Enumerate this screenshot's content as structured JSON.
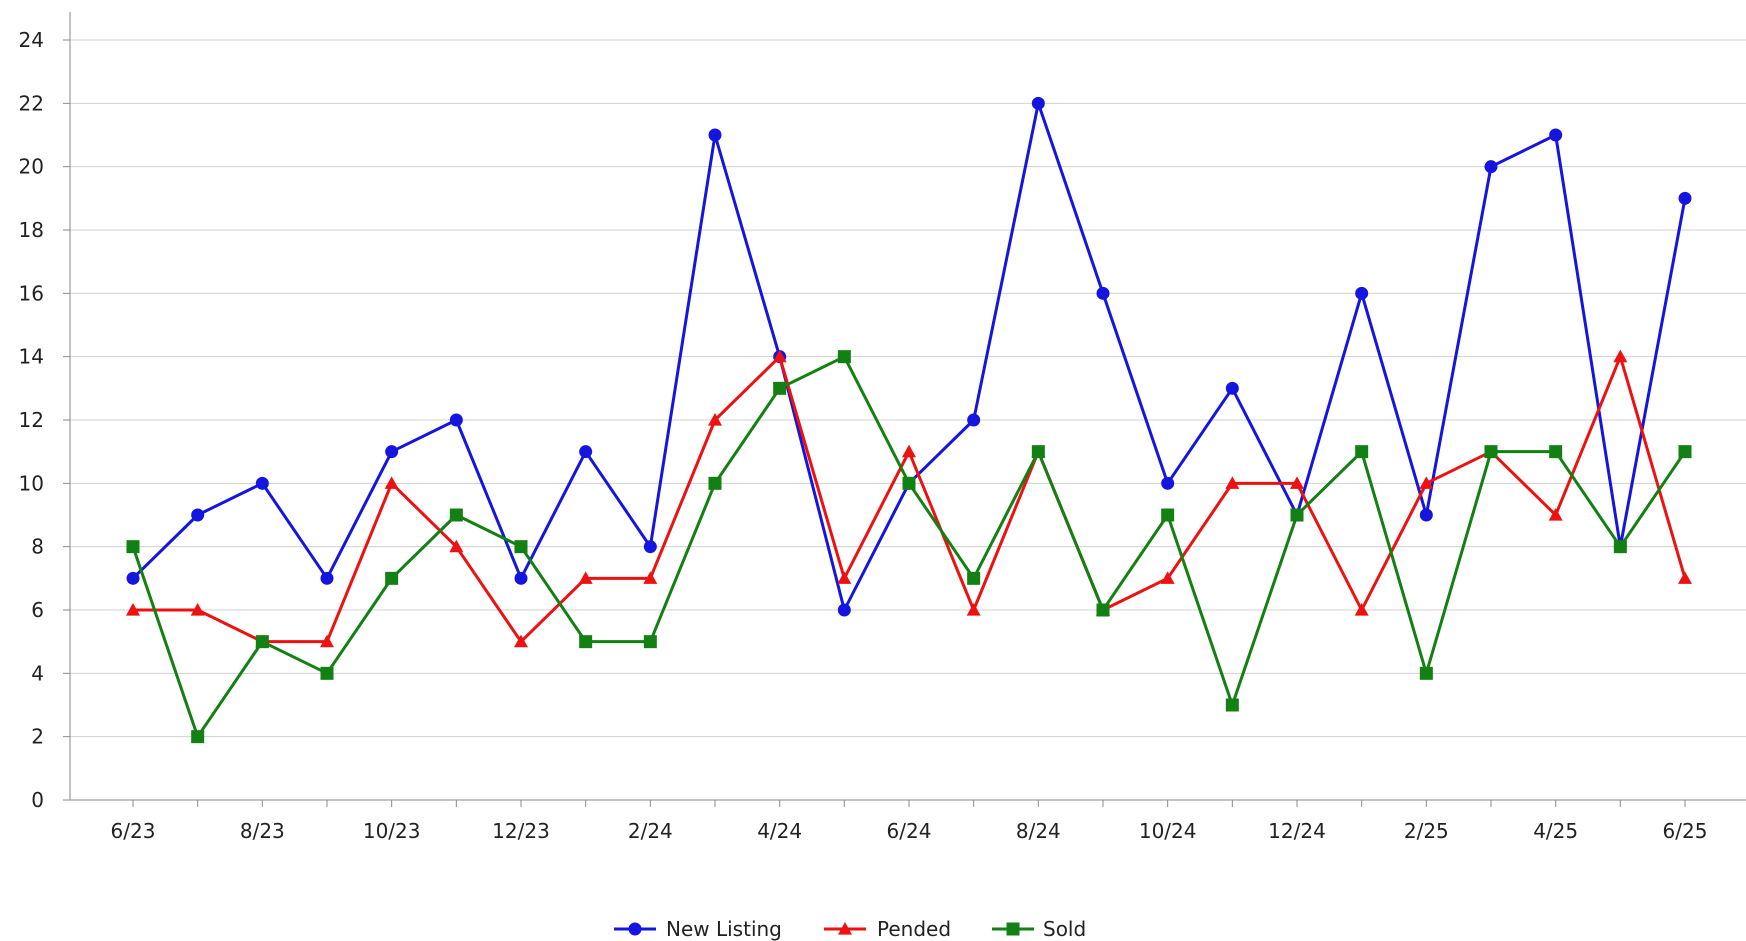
{
  "chart_data": {
    "type": "line",
    "title": "",
    "xlabel": "",
    "ylabel": "",
    "x": [
      "6/23",
      "7/23",
      "8/23",
      "9/23",
      "10/23",
      "11/23",
      "12/23",
      "1/24",
      "2/24",
      "3/24",
      "4/24",
      "5/24",
      "6/24",
      "7/24",
      "8/24",
      "9/24",
      "10/24",
      "11/24",
      "12/24",
      "1/25",
      "2/25",
      "3/25",
      "4/25",
      "5/25",
      "6/25"
    ],
    "x_tick_labels": [
      "6/23",
      "8/23",
      "10/23",
      "12/23",
      "2/24",
      "4/24",
      "6/24",
      "8/24",
      "10/24",
      "12/24",
      "2/25",
      "4/25",
      "6/25"
    ],
    "ylim": [
      0,
      24
    ],
    "y_ticks": [
      0,
      2,
      4,
      6,
      8,
      10,
      12,
      14,
      16,
      18,
      20,
      22,
      24
    ],
    "grid": true,
    "legend_position": "bottom-center",
    "series": [
      {
        "name": "New Listing",
        "color": "#1515e0",
        "marker": "circle",
        "values": [
          7,
          9,
          10,
          7,
          11,
          12,
          7,
          11,
          8,
          21,
          14,
          6,
          10,
          12,
          22,
          16,
          10,
          13,
          9,
          16,
          9,
          20,
          21,
          8,
          19
        ]
      },
      {
        "name": "Pended",
        "color": "#ee1111",
        "marker": "triangle",
        "values": [
          6,
          6,
          5,
          5,
          10,
          8,
          5,
          7,
          7,
          12,
          14,
          7,
          11,
          6,
          11,
          6,
          7,
          10,
          10,
          6,
          10,
          11,
          9,
          14,
          7
        ]
      },
      {
        "name": "Sold",
        "color": "#128012",
        "marker": "square",
        "values": [
          8,
          2,
          5,
          4,
          7,
          9,
          8,
          5,
          5,
          10,
          13,
          14,
          10,
          7,
          11,
          6,
          9,
          3,
          9,
          11,
          4,
          11,
          11,
          8,
          11
        ]
      }
    ]
  }
}
